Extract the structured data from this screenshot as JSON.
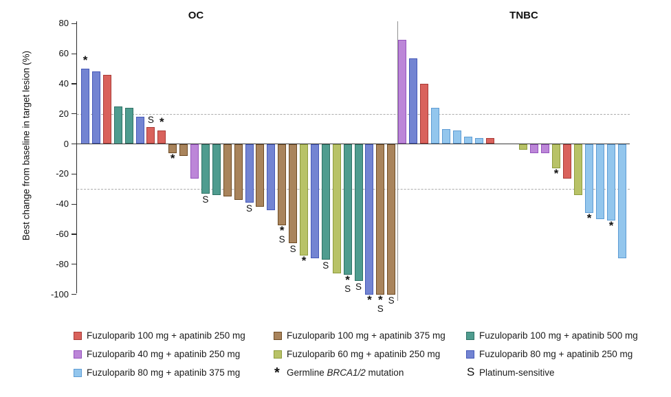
{
  "chart_data": {
    "type": "bar",
    "subtype": "waterfall",
    "ylabel": "Best change from baseline in target lesion (%)",
    "ylim": [
      -100,
      80
    ],
    "yticks": [
      80,
      60,
      40,
      20,
      0,
      -20,
      -40,
      -60,
      -80,
      -100
    ],
    "reference_lines": [
      20,
      -30
    ],
    "grid": "off",
    "marker_legend": {
      "asterisk": "Germline BRCA1/2 mutation",
      "S": "Platinum-sensitive"
    },
    "groups": {
      "F100A250": {
        "label": "Fuzuloparib 100 mg + apatinib 250 mg",
        "fill": "#D9625C",
        "border": "#A93A36"
      },
      "F40A250": {
        "label": "Fuzuloparib 40 mg + apatinib 250 mg",
        "fill": "#BC86D8",
        "border": "#9452BC"
      },
      "F80A375": {
        "label": "Fuzuloparib 80 mg + apatinib 375 mg",
        "fill": "#93C6ED",
        "border": "#5D9BD3"
      },
      "F100A375": {
        "label": "Fuzuloparib 100 mg + apatinib 375 mg",
        "fill": "#A9845C",
        "border": "#6E4B24"
      },
      "F60A250": {
        "label": "Fuzuloparib 60 mg + apatinib 250 mg",
        "fill": "#B8C267",
        "border": "#8E9C3C"
      },
      "F100A500": {
        "label": "Fuzuloparib 100 mg + apatinib 500 mg",
        "fill": "#4F9C8F",
        "border": "#2E7164"
      },
      "F80A250": {
        "label": "Fuzuloparib 80 mg + apatinib 250 mg",
        "fill": "#7384D2",
        "border": "#4458B8"
      }
    },
    "panels": [
      {
        "name": "OC",
        "bars": [
          {
            "v": 50,
            "g": "F80A250",
            "m": "*"
          },
          {
            "v": 48,
            "g": "F80A250",
            "m": ""
          },
          {
            "v": 46,
            "g": "F100A250",
            "m": ""
          },
          {
            "v": 25,
            "g": "F100A500",
            "m": ""
          },
          {
            "v": 24,
            "g": "F100A500",
            "m": ""
          },
          {
            "v": 18,
            "g": "F80A250",
            "m": ""
          },
          {
            "v": 11,
            "g": "F100A250",
            "m": "S"
          },
          {
            "v": 9,
            "g": "F100A250",
            "m": "*"
          },
          {
            "v": -6,
            "g": "F100A375",
            "m": "*"
          },
          {
            "v": -8,
            "g": "F100A375",
            "m": ""
          },
          {
            "v": -23,
            "g": "F40A250",
            "m": ""
          },
          {
            "v": -33,
            "g": "F100A500",
            "m": "S"
          },
          {
            "v": -34,
            "g": "F100A500",
            "m": ""
          },
          {
            "v": -35,
            "g": "F100A375",
            "m": ""
          },
          {
            "v": -37,
            "g": "F100A375",
            "m": ""
          },
          {
            "v": -39,
            "g": "F80A250",
            "m": "S"
          },
          {
            "v": -42,
            "g": "F100A375",
            "m": ""
          },
          {
            "v": -44,
            "g": "F80A250",
            "m": ""
          },
          {
            "v": -54,
            "g": "F100A375",
            "m": "*S"
          },
          {
            "v": -66,
            "g": "F100A375",
            "m": "S"
          },
          {
            "v": -74,
            "g": "F60A250",
            "m": "*"
          },
          {
            "v": -76,
            "g": "F80A250",
            "m": ""
          },
          {
            "v": -77,
            "g": "F100A500",
            "m": "S"
          },
          {
            "v": -86,
            "g": "F60A250",
            "m": ""
          },
          {
            "v": -87,
            "g": "F100A500",
            "m": "*S"
          },
          {
            "v": -91,
            "g": "F100A500",
            "m": "S"
          },
          {
            "v": -100,
            "g": "F80A250",
            "m": "*"
          },
          {
            "v": -100,
            "g": "F100A375",
            "m": "*S"
          },
          {
            "v": -100,
            "g": "F100A375",
            "m": "S"
          }
        ]
      },
      {
        "name": "TNBC",
        "bars": [
          {
            "v": 69,
            "g": "F40A250",
            "m": ""
          },
          {
            "v": 57,
            "g": "F80A250",
            "m": ""
          },
          {
            "v": 40,
            "g": "F100A250",
            "m": ""
          },
          {
            "v": 24,
            "g": "F80A375",
            "m": ""
          },
          {
            "v": 10,
            "g": "F80A375",
            "m": ""
          },
          {
            "v": 9,
            "g": "F80A375",
            "m": ""
          },
          {
            "v": 5,
            "g": "F80A375",
            "m": ""
          },
          {
            "v": 4,
            "g": "F80A375",
            "m": ""
          },
          {
            "v": 4,
            "g": "F100A250",
            "m": ""
          },
          {
            "spacer": true
          },
          {
            "spacer": true
          },
          {
            "v": -4,
            "g": "F60A250",
            "m": ""
          },
          {
            "v": -6,
            "g": "F40A250",
            "m": ""
          },
          {
            "v": -6,
            "g": "F40A250",
            "m": ""
          },
          {
            "v": -16,
            "g": "F60A250",
            "m": "*"
          },
          {
            "v": -23,
            "g": "F100A250",
            "m": ""
          },
          {
            "v": -34,
            "g": "F60A250",
            "m": ""
          },
          {
            "v": -46,
            "g": "F80A375",
            "m": "*"
          },
          {
            "v": -50,
            "g": "F80A375",
            "m": ""
          },
          {
            "v": -51,
            "g": "F80A375",
            "m": "*"
          },
          {
            "v": -76,
            "g": "F80A375",
            "m": ""
          }
        ]
      }
    ]
  },
  "legend": {
    "columns": [
      {
        "items": [
          {
            "type": "swatch",
            "group": "F100A250",
            "label": "Fuzuloparib 100 mg + apatinib 250 mg"
          },
          {
            "type": "swatch",
            "group": "F40A250",
            "label": "Fuzuloparib 40 mg + apatinib 250 mg"
          },
          {
            "type": "swatch",
            "group": "F80A375",
            "label": "Fuzuloparib 80 mg + apatinib 375 mg"
          }
        ]
      },
      {
        "items": [
          {
            "type": "swatch",
            "group": "F100A375",
            "label": "Fuzuloparib 100 mg + apatinib 375 mg"
          },
          {
            "type": "swatch",
            "group": "F60A250",
            "label": "Fuzuloparib 60 mg + apatinib 250 mg"
          },
          {
            "type": "marker",
            "symbol": "*",
            "label_pre": "Germline ",
            "label_italic": "BRCA1/2",
            "label_post": " mutation"
          }
        ]
      },
      {
        "items": [
          {
            "type": "swatch",
            "group": "F100A500",
            "label": "Fuzuloparib 100 mg + apatinib 500 mg"
          },
          {
            "type": "swatch",
            "group": "F80A250",
            "label": "Fuzuloparib 80 mg + apatinib 250 mg"
          },
          {
            "type": "marker",
            "symbol": "S",
            "label_pre": "Platinum-sensitive",
            "label_italic": "",
            "label_post": ""
          }
        ]
      }
    ]
  }
}
